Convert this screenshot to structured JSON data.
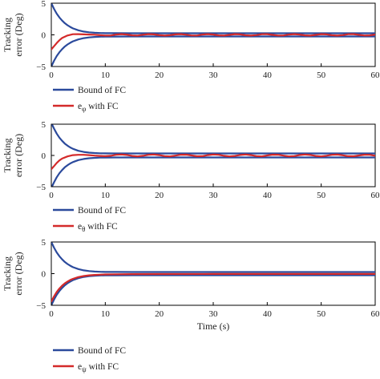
{
  "colors": {
    "bound": "#2b4a9c",
    "error": "#d42a2a",
    "axis": "#000000"
  },
  "chart_data": [
    {
      "type": "line",
      "xlabel": "",
      "ylabel": [
        "Tracking",
        "error (Deg)"
      ],
      "xlim": [
        0,
        60
      ],
      "ylim": [
        -5,
        5
      ],
      "xticks": [
        "0",
        "10",
        "20",
        "30",
        "40",
        "50",
        "60"
      ],
      "yticks": [
        "5",
        "0",
        "−5"
      ],
      "legend": [
        {
          "label": "Bound of FC",
          "color": "#2b4a9c"
        },
        {
          "label": "e",
          "sub": "φ",
          "suffix": " with FC",
          "color": "#d42a2a"
        }
      ],
      "series": [
        {
          "role": "bound-upper",
          "color": "#2b4a9c",
          "x": [
            0,
            0.5,
            1,
            1.5,
            2,
            2.5,
            3,
            3.5,
            4,
            5,
            6,
            7,
            8,
            9,
            10,
            12,
            15,
            20,
            30,
            40,
            50,
            60
          ],
          "y": [
            5,
            4.1,
            3.35,
            2.75,
            2.25,
            1.85,
            1.52,
            1.25,
            1.03,
            0.72,
            0.52,
            0.4,
            0.33,
            0.29,
            0.27,
            0.26,
            0.25,
            0.25,
            0.25,
            0.25,
            0.25,
            0.25
          ]
        },
        {
          "role": "bound-lower",
          "color": "#2b4a9c",
          "x": [
            0,
            0.5,
            1,
            1.5,
            2,
            2.5,
            3,
            3.5,
            4,
            5,
            6,
            7,
            8,
            9,
            10,
            12,
            15,
            20,
            30,
            40,
            50,
            60
          ],
          "y": [
            -5,
            -4.1,
            -3.35,
            -2.75,
            -2.25,
            -1.85,
            -1.52,
            -1.25,
            -1.03,
            -0.72,
            -0.52,
            -0.4,
            -0.33,
            -0.29,
            -0.27,
            -0.26,
            -0.25,
            -0.25,
            -0.25,
            -0.25,
            -0.25,
            -0.25
          ]
        },
        {
          "role": "error",
          "color": "#d42a2a",
          "x": [
            0,
            0.5,
            1,
            1.5,
            2,
            3,
            4,
            5,
            6,
            7,
            8,
            9,
            10,
            11,
            12,
            13,
            14,
            15,
            16,
            17,
            18,
            19,
            20,
            21,
            22,
            23,
            24,
            25,
            26,
            27,
            28,
            29,
            30,
            31,
            32,
            33,
            34,
            35,
            36,
            37,
            38,
            39,
            40,
            41,
            42,
            43,
            44,
            45,
            46,
            47,
            48,
            49,
            50,
            51,
            52,
            53,
            54,
            55,
            56,
            57,
            58,
            59,
            60
          ],
          "y": [
            -2.3,
            -1.8,
            -1.3,
            -0.85,
            -0.5,
            -0.1,
            0.1,
            0.12,
            0.08,
            0.05,
            0.02,
            -0.05,
            -0.1,
            -0.1,
            0.05,
            0.12,
            0.05,
            -0.08,
            -0.1,
            0.02,
            0.12,
            0.08,
            -0.05,
            -0.12,
            -0.05,
            0.08,
            0.12,
            0.02,
            -0.1,
            -0.1,
            0.05,
            0.12,
            0.05,
            -0.08,
            -0.12,
            0.0,
            0.12,
            0.08,
            -0.06,
            -0.12,
            -0.04,
            0.1,
            0.12,
            0.0,
            -0.1,
            -0.1,
            0.05,
            0.12,
            0.05,
            -0.08,
            -0.12,
            0.0,
            0.12,
            0.08,
            -0.06,
            -0.12,
            -0.04,
            0.1,
            0.12,
            0.0,
            -0.1,
            -0.08,
            0.05
          ]
        }
      ]
    },
    {
      "type": "line",
      "xlabel": "",
      "ylabel": [
        "Tracking",
        "error (Deg)"
      ],
      "xlim": [
        0,
        60
      ],
      "ylim": [
        -5,
        5
      ],
      "xticks": [
        "0",
        "10",
        "20",
        "30",
        "40",
        "50",
        "60"
      ],
      "yticks": [
        "5",
        "0",
        "−5"
      ],
      "legend": [
        {
          "label": "Bound of FC",
          "color": "#2b4a9c"
        },
        {
          "label": "e",
          "sub": "θ",
          "suffix": " with FC",
          "color": "#d42a2a"
        }
      ],
      "series": [
        {
          "role": "bound-upper",
          "color": "#2b4a9c",
          "x": [
            0,
            0.5,
            1,
            1.5,
            2,
            2.5,
            3,
            3.5,
            4,
            5,
            6,
            7,
            8,
            9,
            10,
            12,
            15,
            20,
            30,
            40,
            50,
            60
          ],
          "y": [
            5.2,
            4.3,
            3.5,
            2.85,
            2.33,
            1.9,
            1.56,
            1.28,
            1.06,
            0.75,
            0.56,
            0.45,
            0.38,
            0.35,
            0.33,
            0.32,
            0.32,
            0.32,
            0.32,
            0.32,
            0.32,
            0.32
          ]
        },
        {
          "role": "bound-lower",
          "color": "#2b4a9c",
          "x": [
            0,
            0.5,
            1,
            1.5,
            2,
            2.5,
            3,
            3.5,
            4,
            5,
            6,
            7,
            8,
            9,
            10,
            12,
            15,
            20,
            30,
            40,
            50,
            60
          ],
          "y": [
            -5.2,
            -4.3,
            -3.5,
            -2.85,
            -2.33,
            -1.9,
            -1.56,
            -1.28,
            -1.06,
            -0.75,
            -0.56,
            -0.45,
            -0.38,
            -0.35,
            -0.33,
            -0.32,
            -0.32,
            -0.32,
            -0.32,
            -0.32,
            -0.32,
            -0.32
          ]
        },
        {
          "role": "error",
          "color": "#d42a2a",
          "x": [
            0,
            0.5,
            1,
            1.5,
            2,
            3,
            4,
            5,
            6,
            7,
            8,
            9,
            10,
            11,
            12,
            13,
            14,
            15,
            16,
            17,
            18,
            19,
            20,
            21,
            22,
            23,
            24,
            25,
            26,
            27,
            28,
            29,
            30,
            31,
            32,
            33,
            34,
            35,
            36,
            37,
            38,
            39,
            40,
            41,
            42,
            43,
            44,
            45,
            46,
            47,
            48,
            49,
            50,
            51,
            52,
            53,
            54,
            55,
            56,
            57,
            58,
            59,
            60
          ],
          "y": [
            -2.2,
            -1.7,
            -1.2,
            -0.8,
            -0.5,
            -0.15,
            0.05,
            0.1,
            0.1,
            0.05,
            -0.02,
            -0.08,
            -0.12,
            -0.05,
            0.1,
            0.15,
            0.08,
            -0.08,
            -0.15,
            -0.05,
            0.1,
            0.15,
            0.05,
            -0.1,
            -0.15,
            -0.02,
            0.12,
            0.13,
            0.0,
            -0.13,
            -0.12,
            0.05,
            0.15,
            0.1,
            -0.05,
            -0.15,
            -0.08,
            0.08,
            0.15,
            0.05,
            -0.1,
            -0.15,
            0.0,
            0.13,
            0.12,
            -0.03,
            -0.15,
            -0.1,
            0.06,
            0.15,
            0.08,
            -0.08,
            -0.15,
            -0.04,
            0.1,
            0.14,
            0.02,
            -0.12,
            -0.13,
            0.0,
            0.12,
            0.1,
            -0.05
          ]
        }
      ]
    },
    {
      "type": "line",
      "xlabel": "Time (s)",
      "ylabel": [
        "Tracking",
        "error (Deg)"
      ],
      "xlim": [
        0,
        60
      ],
      "ylim": [
        -5,
        5
      ],
      "xticks": [
        "0",
        "10",
        "20",
        "30",
        "40",
        "50",
        "60"
      ],
      "yticks": [
        "5",
        "0",
        "−5"
      ],
      "legend": [
        {
          "label": "Bound of FC",
          "color": "#2b4a9c"
        },
        {
          "label": "e",
          "sub": "ψ",
          "suffix": " with FC",
          "color": "#d42a2a"
        }
      ],
      "series": [
        {
          "role": "bound-upper",
          "color": "#2b4a9c",
          "x": [
            0,
            0.5,
            1,
            1.5,
            2,
            2.5,
            3,
            3.5,
            4,
            5,
            6,
            7,
            8,
            9,
            10,
            12,
            15,
            20,
            30,
            40,
            50,
            60
          ],
          "y": [
            5,
            4.1,
            3.35,
            2.75,
            2.25,
            1.85,
            1.52,
            1.25,
            1.03,
            0.72,
            0.52,
            0.4,
            0.33,
            0.29,
            0.27,
            0.26,
            0.25,
            0.25,
            0.25,
            0.25,
            0.25,
            0.25
          ]
        },
        {
          "role": "bound-lower",
          "color": "#2b4a9c",
          "x": [
            0,
            0.5,
            1,
            1.5,
            2,
            2.5,
            3,
            3.5,
            4,
            5,
            6,
            7,
            8,
            9,
            10,
            12,
            15,
            20,
            30,
            40,
            50,
            60
          ],
          "y": [
            -5,
            -4.1,
            -3.35,
            -2.75,
            -2.25,
            -1.85,
            -1.52,
            -1.25,
            -1.03,
            -0.72,
            -0.52,
            -0.4,
            -0.33,
            -0.29,
            -0.27,
            -0.26,
            -0.25,
            -0.25,
            -0.25,
            -0.25,
            -0.25,
            -0.25
          ]
        },
        {
          "role": "error",
          "color": "#d42a2a",
          "x": [
            0,
            0.5,
            1,
            1.5,
            2,
            2.5,
            3,
            3.5,
            4,
            5,
            6,
            7,
            8,
            9,
            10,
            12,
            15,
            20,
            30,
            40,
            50,
            60
          ],
          "y": [
            -4.4,
            -3.6,
            -2.9,
            -2.35,
            -1.9,
            -1.55,
            -1.25,
            -1.0,
            -0.82,
            -0.55,
            -0.38,
            -0.27,
            -0.2,
            -0.16,
            -0.13,
            -0.1,
            -0.08,
            -0.06,
            -0.05,
            -0.05,
            -0.05,
            -0.05
          ]
        }
      ]
    }
  ]
}
